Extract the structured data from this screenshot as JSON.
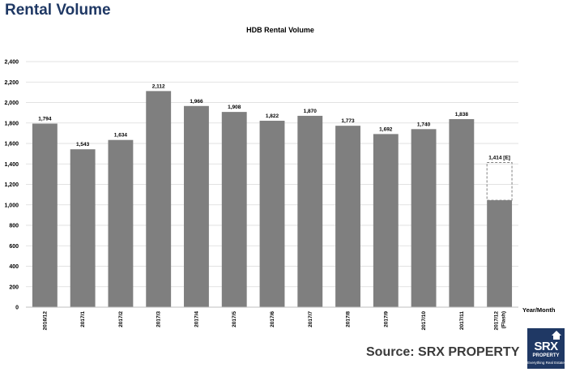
{
  "page": {
    "title": "Rental Volume",
    "source": "Source:  SRX PROPERTY"
  },
  "logo": {
    "main": "SRX",
    "sub": "PROPERTY",
    "tagline": "Everything Real Estate"
  },
  "colors": {
    "bar": "#7f7f7f",
    "estimate_border": "#7f7f7f",
    "title": "#1f3864",
    "logo_bg": "#1f3864"
  },
  "chart_data": {
    "type": "bar",
    "title": "HDB Rental Volume",
    "xlabel": "Year/Month",
    "ylabel": "",
    "ylim": [
      0,
      2400
    ],
    "yticks": [
      0,
      200,
      400,
      600,
      800,
      1000,
      1200,
      1400,
      1600,
      1800,
      2000,
      2200,
      2400
    ],
    "ytick_labels": [
      "0",
      "200",
      "400",
      "600",
      "800",
      "1,000",
      "1,200",
      "1,400",
      "1,600",
      "1,800",
      "2,000",
      "2,200",
      "2,400"
    ],
    "grid": true,
    "legend": "none",
    "categories": [
      "2016/12",
      "2017/1",
      "2017/2",
      "2017/3",
      "2017/4",
      "2017/5",
      "2017/6",
      "2017/7",
      "2017/8",
      "2017/9",
      "2017/10",
      "2017/11",
      "2017/12 (Flash)"
    ],
    "values": [
      1794,
      1543,
      1634,
      2112,
      1966,
      1908,
      1822,
      1870,
      1773,
      1692,
      1740,
      1838,
      1045
    ],
    "labels": [
      "1,794",
      "1,543",
      "1,634",
      "2,112",
      "1,966",
      "1,908",
      "1,822",
      "1,870",
      "1,773",
      "1,692",
      "1,740",
      "1,838",
      ""
    ],
    "estimate": {
      "category": "2017/12 (Flash)",
      "value": 1414,
      "label": "1,414 [E]"
    }
  }
}
